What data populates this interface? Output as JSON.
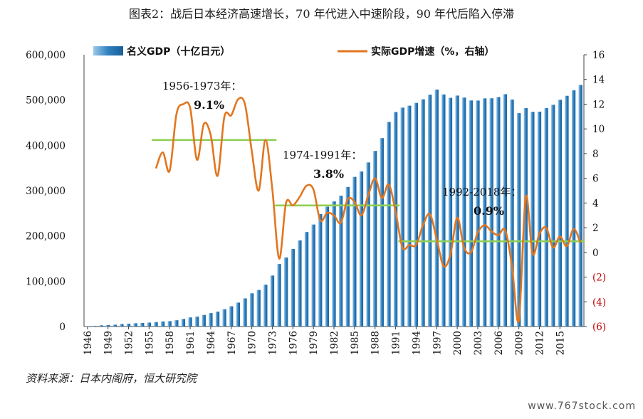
{
  "title": "图表2：战后日本经济高速增长，70 年代进入中速阶段，90 年代后陷入停滞",
  "source": "资料来源：日本内阁府，恒大研究院",
  "watermark": "www.767stock.com",
  "colors": {
    "bar": "#2e80c0",
    "line": "#e2761f",
    "avg": "#8fcf52",
    "neg_tick": "#c00000"
  },
  "chart_data": {
    "type": "bar+line",
    "title": "图表2：战后日本经济高速增长，70 年代进入中速阶段，90 年代后陷入停滞",
    "x": [
      1946,
      1947,
      1948,
      1949,
      1950,
      1951,
      1952,
      1953,
      1954,
      1955,
      1956,
      1957,
      1958,
      1959,
      1960,
      1961,
      1962,
      1963,
      1964,
      1965,
      1966,
      1967,
      1968,
      1969,
      1970,
      1971,
      1972,
      1973,
      1974,
      1975,
      1976,
      1977,
      1978,
      1979,
      1980,
      1981,
      1982,
      1983,
      1984,
      1985,
      1986,
      1987,
      1988,
      1989,
      1990,
      1991,
      1992,
      1993,
      1994,
      1995,
      1996,
      1997,
      1998,
      1999,
      2000,
      2001,
      2002,
      2003,
      2004,
      2005,
      2006,
      2007,
      2008,
      2009,
      2010,
      2011,
      2012,
      2013,
      2014,
      2015,
      2016,
      2017,
      2018
    ],
    "x_tick_labels": [
      "1946",
      "1949",
      "1952",
      "1955",
      "1958",
      "1961",
      "1964",
      "1967",
      "1970",
      "1973",
      "1976",
      "1979",
      "1982",
      "1985",
      "1988",
      "1991",
      "1994",
      "1997",
      "2000",
      "2003",
      "2006",
      "2009",
      "2012",
      "2015"
    ],
    "series": [
      {
        "name": "名义GDP（十亿日元）",
        "type": "bar",
        "axis": "left",
        "values": [
          475,
          1310,
          2670,
          3380,
          3950,
          5430,
          6250,
          7240,
          7840,
          8600,
          9770,
          11200,
          11880,
          13870,
          16680,
          20060,
          21810,
          25590,
          29660,
          32870,
          38170,
          44730,
          52780,
          62070,
          73350,
          80700,
          92400,
          112500,
          138000,
          152400,
          171300,
          190100,
          208600,
          225200,
          248300,
          264600,
          276200,
          288800,
          308200,
          330400,
          342300,
          362300,
          387700,
          415900,
          451700,
          473600,
          483300,
          487600,
          493700,
          501700,
          511900,
          523200,
          512400,
          504900,
          509900,
          505500,
          499100,
          498900,
          503700,
          503900,
          506700,
          512900,
          501200,
          471100,
          482400,
          474000,
          474400,
          482400,
          489600,
          500600,
          509400,
          521500,
          533400
        ]
      },
      {
        "name": "实际GDP增速（%，右轴）",
        "type": "line",
        "axis": "right",
        "values": [
          null,
          null,
          null,
          null,
          null,
          null,
          null,
          null,
          null,
          null,
          6.8,
          8.1,
          6.6,
          11.2,
          12.0,
          11.7,
          7.5,
          10.4,
          9.5,
          6.2,
          11.0,
          11.1,
          12.4,
          12.0,
          8.2,
          5.0,
          9.1,
          5.1,
          -0.5,
          4.0,
          3.8,
          4.5,
          5.4,
          5.1,
          2.6,
          3.2,
          3.0,
          2.4,
          4.3,
          4.1,
          3.0,
          4.6,
          6.0,
          4.4,
          5.5,
          3.3,
          0.4,
          0.6,
          0.6,
          2.2,
          3.1,
          1.1,
          -1.1,
          -0.2,
          2.8,
          0.4,
          0.0,
          1.6,
          2.2,
          1.7,
          1.4,
          1.8,
          -1.1,
          -5.5,
          4.5,
          -0.1,
          1.5,
          2.0,
          0.4,
          1.3,
          0.5,
          1.9,
          0.8
        ]
      }
    ],
    "y_left": {
      "lim": [
        0,
        600000
      ],
      "ticks": [
        "0",
        "100,000",
        "200,000",
        "300,000",
        "400,000",
        "500,000",
        "600,000"
      ]
    },
    "y_right": {
      "lim": [
        -6,
        16
      ],
      "ticks": [
        "(6)",
        "(4)",
        "(2)",
        "0",
        "2",
        "4",
        "6",
        "8",
        "10",
        "12",
        "14",
        "16"
      ]
    },
    "averages": [
      {
        "label": "1956-1973年：",
        "value_label": "9.1%",
        "value": 9.1,
        "from": 1956,
        "to": 1973
      },
      {
        "label": "1974-1991年：",
        "value_label": "3.8%",
        "value": 3.8,
        "from": 1974,
        "to": 1991
      },
      {
        "label": "1992-2018年：",
        "value_label": "0.9%",
        "value": 0.9,
        "from": 1992,
        "to": 2018
      }
    ],
    "grid": false,
    "legend": "top"
  }
}
